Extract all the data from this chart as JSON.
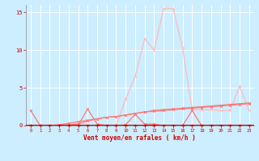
{
  "x": [
    0,
    1,
    2,
    3,
    4,
    5,
    6,
    7,
    8,
    9,
    10,
    11,
    12,
    13,
    14,
    15,
    16,
    17,
    18,
    19,
    20,
    21,
    22,
    23
  ],
  "line_peak": [
    0,
    0,
    0,
    0,
    0,
    0,
    0,
    0,
    0,
    0,
    3.5,
    6.5,
    11.5,
    10.0,
    15.5,
    15.5,
    10.3,
    2.1,
    2.1,
    2.1,
    2.0,
    2.0,
    5.2,
    2.0
  ],
  "line_spiky": [
    2,
    0,
    0,
    0,
    0,
    0,
    2.2,
    0.2,
    0,
    0,
    0.1,
    1.5,
    0.2,
    0.2,
    0,
    0,
    0,
    2,
    0,
    0,
    0,
    0,
    0,
    0
  ],
  "line_trend1": [
    0,
    0,
    0,
    0.1,
    0.3,
    0.5,
    0.7,
    0.9,
    1.1,
    1.2,
    1.4,
    1.6,
    1.8,
    2.0,
    2.1,
    2.2,
    2.3,
    2.4,
    2.5,
    2.6,
    2.7,
    2.8,
    2.9,
    3.0
  ],
  "line_trend2": [
    0,
    0,
    0,
    0,
    0.1,
    0.2,
    0.6,
    0.9,
    1.1,
    1.2,
    1.4,
    1.6,
    1.8,
    1.9,
    2.0,
    2.1,
    2.2,
    2.3,
    2.4,
    2.5,
    2.6,
    2.7,
    2.8,
    2.9
  ],
  "line_zero": [
    0,
    0,
    0,
    0,
    0,
    0,
    0,
    0,
    0,
    0,
    0,
    0,
    0,
    0,
    0,
    0,
    0,
    0,
    0,
    0,
    0,
    0,
    0,
    0
  ],
  "background_color": "#cceeff",
  "grid_color": "#ffffff",
  "line_color_dark": "#cc0000",
  "line_color_mid": "#ff7777",
  "line_color_light": "#ffbbbb",
  "xlabel": "Vent moyen/en rafales ( km/h )",
  "ylim": [
    0,
    16
  ],
  "xlim": [
    -0.5,
    23.5
  ],
  "yticks": [
    0,
    5,
    10,
    15
  ],
  "xticks": [
    0,
    1,
    2,
    3,
    4,
    5,
    6,
    7,
    8,
    9,
    10,
    11,
    12,
    13,
    14,
    15,
    16,
    17,
    18,
    19,
    20,
    21,
    22,
    23
  ]
}
